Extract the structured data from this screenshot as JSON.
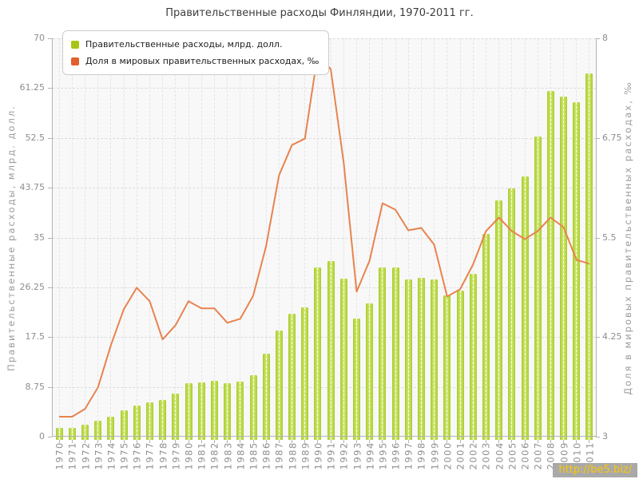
{
  "title": "Правительственные расходы Финляндии, 1970-2011 гг.",
  "watermark": "http://be5.biz/",
  "legend": [
    {
      "label": "Правительственные расходы, млрд. долл.",
      "color": "#a9c514"
    },
    {
      "label": "Доля в мировых правительственных расходах, ‰",
      "color": "#e2602c"
    }
  ],
  "chart_data": {
    "type": "bar",
    "subtype": "bar+line combo",
    "grid": true,
    "legend_position": "top-left",
    "categories": [
      "1970",
      "1971",
      "1972",
      "1973",
      "1974",
      "1975",
      "1976",
      "1977",
      "1978",
      "1979",
      "1980",
      "1981",
      "1982",
      "1983",
      "1984",
      "1985",
      "1986",
      "1987",
      "1988",
      "1989",
      "1990",
      "1991",
      "1992",
      "1993",
      "1994",
      "1995",
      "1996",
      "1997",
      "1998",
      "1999",
      "2000",
      "2001",
      "2002",
      "2003",
      "2004",
      "2005",
      "2006",
      "2007",
      "2008",
      "2009",
      "2010",
      "2011"
    ],
    "left_axis": {
      "label": "Правительственные расходы, млрд. долл.",
      "min": 0,
      "max": 70,
      "ticks": [
        0,
        8.75,
        17.5,
        26.25,
        35,
        43.75,
        52.5,
        61.25,
        70
      ]
    },
    "right_axis": {
      "label": "Доля в мировых правительственных расходах, ‰",
      "min": 3,
      "max": 8,
      "ticks": [
        3,
        4.25,
        5.5,
        6.75,
        8
      ]
    },
    "series": [
      {
        "name": "Правительственные расходы, млрд. долл.",
        "type": "bar",
        "axis": "left",
        "color": "#b5d435",
        "values": [
          1.5,
          1.6,
          2.1,
          2.8,
          3.5,
          4.7,
          5.5,
          6.0,
          6.4,
          7.6,
          9.4,
          9.5,
          9.8,
          9.4,
          9.7,
          10.8,
          14.6,
          18.7,
          21.6,
          22.7,
          29.7,
          30.8,
          27.8,
          20.7,
          23.4,
          29.8,
          29.7,
          27.6,
          27.9,
          27.6,
          24.8,
          25.7,
          28.6,
          35.7,
          41.6,
          43.6,
          45.7,
          52.7,
          60.8,
          59.7,
          58.8,
          63.9
        ]
      },
      {
        "name": "Доля в мировых правительственных расходах, ‰",
        "type": "line",
        "axis": "right",
        "color": "#e8834f",
        "values": [
          3.25,
          3.25,
          3.35,
          3.62,
          4.15,
          4.6,
          4.87,
          4.7,
          4.22,
          4.4,
          4.7,
          4.61,
          4.61,
          4.43,
          4.48,
          4.77,
          5.39,
          6.28,
          6.66,
          6.74,
          7.81,
          7.61,
          6.44,
          4.82,
          5.21,
          5.93,
          5.85,
          5.59,
          5.62,
          5.41,
          4.76,
          4.85,
          5.16,
          5.58,
          5.75,
          5.58,
          5.48,
          5.58,
          5.75,
          5.63,
          5.22,
          5.17
        ]
      }
    ]
  }
}
